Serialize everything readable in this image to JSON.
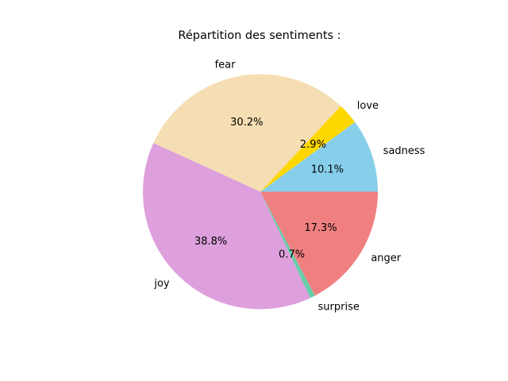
{
  "chart_data": {
    "type": "pie",
    "title": "Répartition des sentiments :",
    "start_angle_deg": 0,
    "direction": "counterclockwise",
    "slices": [
      {
        "label": "sadness",
        "value": 10.1,
        "pct_label": "10.1%",
        "color": "#87CEEB"
      },
      {
        "label": "love",
        "value": 2.9,
        "pct_label": "2.9%",
        "color": "#FFD700"
      },
      {
        "label": "fear",
        "value": 30.2,
        "pct_label": "30.2%",
        "color": "#F5DEB3"
      },
      {
        "label": "joy",
        "value": 38.8,
        "pct_label": "38.8%",
        "color": "#DDA0DD"
      },
      {
        "label": "surprise",
        "value": 0.7,
        "pct_label": "0.7%",
        "color": "#66CDAA"
      },
      {
        "label": "anger",
        "value": 17.3,
        "pct_label": "17.3%",
        "color": "#F08080"
      }
    ]
  }
}
